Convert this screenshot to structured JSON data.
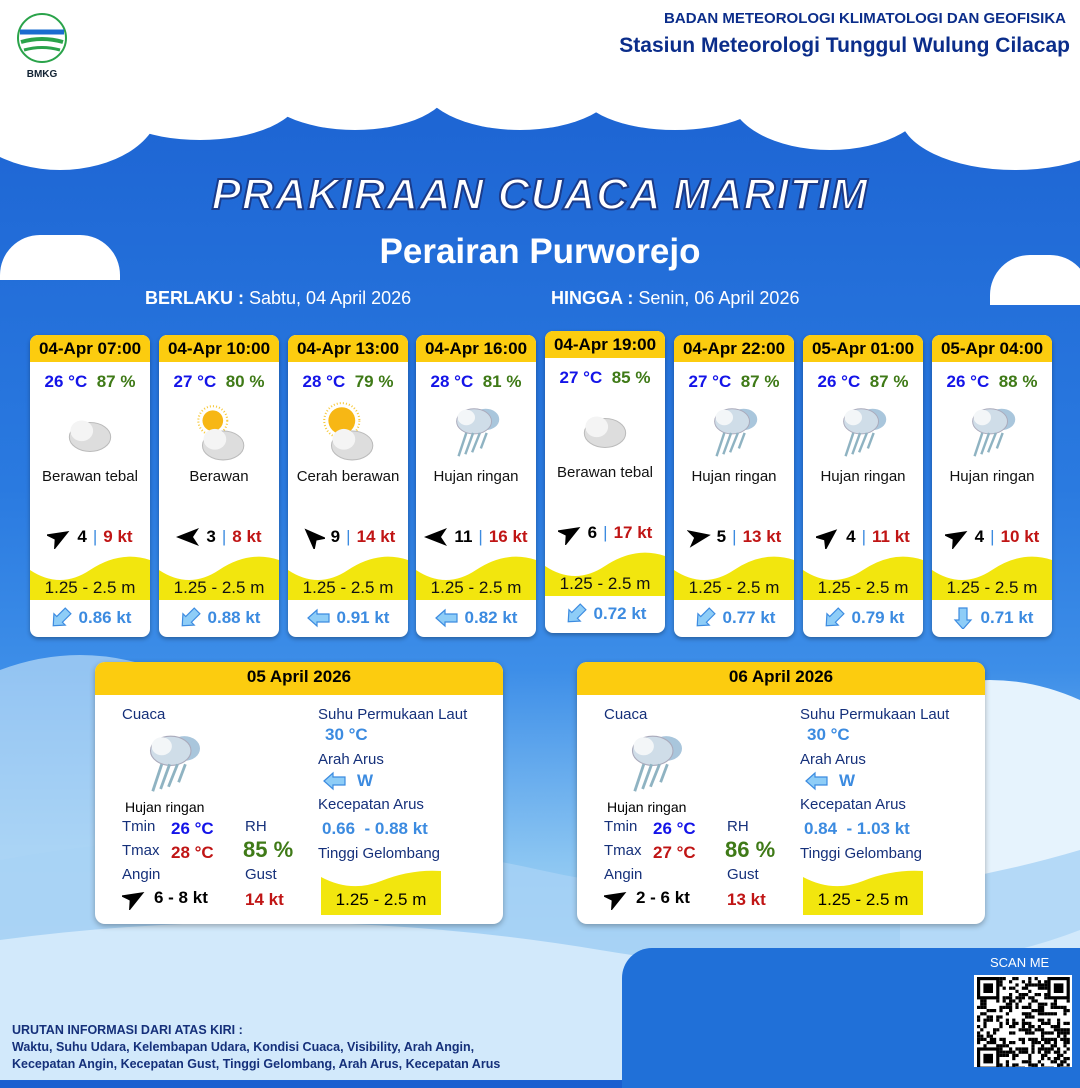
{
  "header": {
    "org": "BADAN METEOROLOGI KLIMATOLOGI DAN GEOFISIKA",
    "station": "Stasiun Meteorologi Tunggul Wulung Cilacap",
    "logo_text": "BMKG"
  },
  "title": "PRAKIRAAN CUACA MARITIM",
  "subtitle": "Perairan Purworejo",
  "validity": {
    "from_label": "BERLAKU :",
    "from": "Sabtu, 04 April 2026",
    "to_label": "HINGGA :",
    "to": "Senin, 06 April 2026"
  },
  "cards": [
    {
      "time": "04-Apr 07:00",
      "temp": "26 °C",
      "rh": "87 %",
      "icon": "cloudy-icon",
      "cond": "Berawan tebal",
      "wind_dir_deg": 60,
      "wind": "4",
      "gust": "9 kt",
      "wave": "1.25 - 2.5 m",
      "current_dir": "down-left",
      "current": "0.86 kt"
    },
    {
      "time": "04-Apr 10:00",
      "temp": "27 °C",
      "rh": "80 %",
      "icon": "partly-cloudy-icon",
      "cond": "Berawan",
      "wind_dir_deg": 270,
      "wind": "3",
      "gust": "8 kt",
      "wave": "1.25 - 2.5 m",
      "current_dir": "down-left",
      "current": "0.88 kt"
    },
    {
      "time": "04-Apr 13:00",
      "temp": "28 °C",
      "rh": "79 %",
      "icon": "sunny-cloudy-icon",
      "cond": "Cerah berawan",
      "wind_dir_deg": 315,
      "wind": "9",
      "gust": "14 kt",
      "wave": "1.25 - 2.5 m",
      "current_dir": "left",
      "current": "0.91 kt"
    },
    {
      "time": "04-Apr 16:00",
      "temp": "28 °C",
      "rh": "81 %",
      "icon": "light-rain-icon",
      "cond": "Hujan ringan",
      "wind_dir_deg": 270,
      "wind": "11",
      "gust": "16 kt",
      "wave": "1.25 - 2.5 m",
      "current_dir": "left",
      "current": "0.82 kt"
    },
    {
      "time": "04-Apr 19:00",
      "temp": "27 °C",
      "rh": "85 %",
      "icon": "cloudy-icon",
      "cond": "Berawan tebal",
      "wind_dir_deg": 60,
      "wind": "6",
      "gust": "17 kt",
      "wave": "1.25 - 2.5 m",
      "current_dir": "down-left",
      "current": "0.72 kt"
    },
    {
      "time": "04-Apr 22:00",
      "temp": "27 °C",
      "rh": "87 %",
      "icon": "light-rain-icon",
      "cond": "Hujan ringan",
      "wind_dir_deg": 80,
      "wind": "5",
      "gust": "13 kt",
      "wave": "1.25 - 2.5 m",
      "current_dir": "down-left",
      "current": "0.77 kt"
    },
    {
      "time": "05-Apr 01:00",
      "temp": "26 °C",
      "rh": "87 %",
      "icon": "light-rain-icon",
      "cond": "Hujan ringan",
      "wind_dir_deg": 50,
      "wind": "4",
      "gust": "11 kt",
      "wave": "1.25 - 2.5 m",
      "current_dir": "down-left",
      "current": "0.79 kt"
    },
    {
      "time": "05-Apr 04:00",
      "temp": "26 °C",
      "rh": "88 %",
      "icon": "light-rain-icon",
      "cond": "Hujan ringan",
      "wind_dir_deg": 60,
      "wind": "4",
      "gust": "10 kt",
      "wave": "1.25 - 2.5 m",
      "current_dir": "down",
      "current": "0.71 kt"
    }
  ],
  "labels": {
    "weather": "Cuaca",
    "sst": "Suhu Permukaan Laut",
    "cur_dir": "Arah Arus",
    "cur_speed": "Kecepatan Arus",
    "wave": "Tinggi Gelombang",
    "tmin": "Tmin",
    "tmax": "Tmax",
    "rh": "RH",
    "wind": "Angin",
    "gust": "Gust"
  },
  "days": [
    {
      "date": "05 April 2026",
      "cond": "Hujan ringan",
      "tmin": "26 °C",
      "tmax": "28 °C",
      "rh": "85 %",
      "wind": "6  - 8 kt",
      "gust": "14 kt",
      "sst": "30 °C",
      "cur_dir": "W",
      "cur_speed": "0.66  - 0.88 kt",
      "wave": "1.25 - 2.5 m"
    },
    {
      "date": "06 April 2026",
      "cond": "Hujan ringan",
      "tmin": "26 °C",
      "tmax": "27 °C",
      "rh": "86 %",
      "wind": "2  - 6 kt",
      "gust": "13 kt",
      "sst": "30 °C",
      "cur_dir": "W",
      "cur_speed": "0.84  - 1.03 kt",
      "wave": "1.25 - 2.5 m"
    }
  ],
  "footer": {
    "line1": "URUTAN INFORMASI DARI ATAS KIRI :",
    "line2": "Waktu, Suhu Udara, Kelembapan Udara, Kondisi Cuaca, Visibility, Arah Angin,",
    "line3": "Kecepatan Angin, Kecepatan Gust, Tinggi Gelombang, Arah Arus, Kecepatan Arus"
  },
  "qr": {
    "label": "SCAN ME"
  },
  "colors": {
    "header_yellow": "#fccc0f",
    "wave_yellow": "#f2e60e",
    "temp": "#1414e8",
    "rh": "#3f7a17",
    "gust": "#c01515",
    "current": "#3c8be0"
  }
}
